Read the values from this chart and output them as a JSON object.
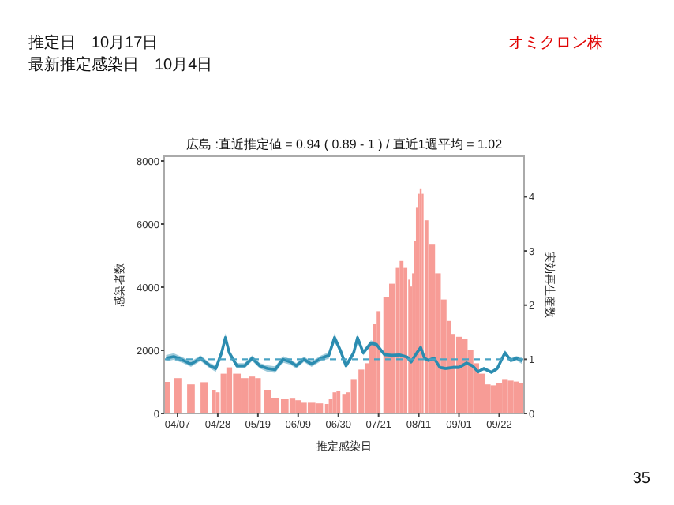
{
  "chart_data": {
    "type": "bar",
    "title": "広島 :直近推定値 = 0.94 ( 0.89 - 1 ) / 直近1週平均 = 1.02",
    "xlabel": "推定感染日",
    "ylabel": "感染者数",
    "y2label": "実効再生産数",
    "annotations": [
      "推定日　10月17日",
      "最新推定感染日　10月4日",
      "オミクロン株",
      "35"
    ],
    "xlim": [
      "--03-31",
      "--10-05"
    ],
    "xticks": [
      {
        "value": "--04-07",
        "label": "04/07"
      },
      {
        "value": "--04-28",
        "label": "04/28"
      },
      {
        "value": "--05-19",
        "label": "05/19"
      },
      {
        "value": "--06-09",
        "label": "06/09"
      },
      {
        "value": "--06-30",
        "label": "06/30"
      },
      {
        "value": "--07-21",
        "label": "07/21"
      },
      {
        "value": "--08-11",
        "label": "08/11"
      },
      {
        "value": "--09-01",
        "label": "09/01"
      },
      {
        "value": "--09-22",
        "label": "09/22"
      }
    ],
    "ylim": [
      0,
      8150
    ],
    "yticks": [
      0,
      2000,
      4000,
      6000,
      8000
    ],
    "y2lim": [
      0,
      4.75
    ],
    "y2ticks": [
      0,
      1,
      2,
      3,
      4
    ],
    "grid": false,
    "ref_lines": [
      {
        "axis": "y2",
        "value": 1,
        "color": "#4aa3c3",
        "line_style": "dashed"
      }
    ],
    "series": [
      {
        "color": "#f79c96",
        "x": [
          "--04-01",
          "--04-07",
          "--04-14",
          "--04-21",
          "--04-26",
          "--04-28",
          "--05-01",
          "--05-04",
          "--05-08",
          "--05-12",
          "--05-16",
          "--05-19",
          "--05-24",
          "--05-28",
          "--06-02",
          "--06-06",
          "--06-09",
          "--06-12",
          "--06-16",
          "--06-20",
          "--06-24",
          "--06-26",
          "--06-28",
          "--06-30",
          "--07-03",
          "--07-05",
          "--07-08",
          "--07-12",
          "--07-15",
          "--07-17",
          "--07-19",
          "--07-21",
          "--07-25",
          "--07-28",
          "--07-31",
          "--08-02",
          "--08-04",
          "--08-06",
          "--08-07",
          "--08-08",
          "--08-09",
          "--08-10",
          "--08-11",
          "--08-12",
          "--08-13",
          "--08-15",
          "--08-18",
          "--08-21",
          "--08-24",
          "--08-27",
          "--08-29",
          "--09-01",
          "--09-04",
          "--09-07",
          "--09-10",
          "--09-13",
          "--09-16",
          "--09-19",
          "--09-22",
          "--09-25",
          "--09-28",
          "--10-01",
          "--10-04"
        ],
        "values": [
          1000,
          1120,
          920,
          990,
          750,
          670,
          1260,
          1460,
          1260,
          1120,
          1170,
          1120,
          750,
          500,
          450,
          470,
          420,
          340,
          340,
          320,
          300,
          450,
          670,
          720,
          620,
          670,
          1090,
          1390,
          1590,
          2260,
          2850,
          3240,
          3690,
          4110,
          4610,
          4830,
          4610,
          4240,
          4020,
          4440,
          5450,
          6540,
          6960,
          7130,
          6960,
          6120,
          5370,
          4440,
          3610,
          2930,
          2520,
          2430,
          2350,
          2010,
          1590,
          1260,
          920,
          890,
          960,
          1090,
          1040,
          1010,
          960
        ]
      },
      {
        "type": "line",
        "axis": "y2",
        "color": "#2b8cb0",
        "x": [
          "--04-01",
          "--04-05",
          "--04-10",
          "--04-14",
          "--04-19",
          "--04-24",
          "--04-27",
          "--04-30",
          "--05-02",
          "--05-04",
          "--05-08",
          "--05-12",
          "--05-16",
          "--05-20",
          "--05-24",
          "--05-28",
          "--06-01",
          "--06-05",
          "--06-08",
          "--06-12",
          "--06-16",
          "--06-21",
          "--06-25",
          "--06-28",
          "--07-01",
          "--07-04",
          "--07-08",
          "--07-10",
          "--07-13",
          "--07-17",
          "--07-20",
          "--07-24",
          "--07-28",
          "--08-01",
          "--08-05",
          "--08-07",
          "--08-10",
          "--08-12",
          "--08-14",
          "--08-16",
          "--08-19",
          "--08-22",
          "--08-25",
          "--08-29",
          "--09-01",
          "--09-05",
          "--09-08",
          "--09-11",
          "--09-14",
          "--09-18",
          "--09-21",
          "--09-25",
          "--09-28",
          "--10-01",
          "--10-04"
        ],
        "values": [
          1.02,
          1.05,
          0.98,
          0.91,
          1.02,
          0.88,
          0.83,
          1.12,
          1.4,
          1.12,
          0.88,
          0.88,
          1.02,
          0.88,
          0.83,
          0.81,
          1.0,
          0.95,
          0.88,
          1.0,
          0.91,
          1.02,
          1.07,
          1.4,
          1.17,
          0.88,
          1.12,
          1.4,
          1.12,
          1.3,
          1.27,
          1.09,
          1.07,
          1.08,
          1.04,
          0.95,
          1.12,
          1.22,
          1.02,
          0.98,
          1.02,
          0.85,
          0.83,
          0.85,
          0.85,
          0.93,
          0.88,
          0.77,
          0.83,
          0.76,
          0.83,
          1.12,
          0.98,
          1.02,
          0.97
        ],
        "lower": [
          0.96,
          0.99,
          0.93,
          0.86,
          0.97,
          0.83,
          0.77,
          1.05,
          1.32,
          1.06,
          0.83,
          0.83,
          0.97,
          0.83,
          0.77,
          0.75,
          0.94,
          0.9,
          0.83,
          0.95,
          0.86,
          0.97,
          1.01,
          1.32,
          1.11,
          0.83,
          1.06,
          1.33,
          1.07,
          1.25,
          1.23,
          1.05,
          1.03,
          1.05,
          1.01,
          0.92,
          1.09,
          1.18,
          0.99,
          0.95,
          0.99,
          0.82,
          0.8,
          0.82,
          0.82,
          0.9,
          0.85,
          0.74,
          0.8,
          0.73,
          0.79,
          1.07,
          0.94,
          0.98,
          0.91
        ],
        "upper": [
          1.08,
          1.11,
          1.03,
          0.96,
          1.07,
          0.93,
          0.89,
          1.19,
          1.48,
          1.18,
          0.93,
          0.93,
          1.07,
          0.93,
          0.89,
          0.87,
          1.06,
          1.0,
          0.93,
          1.05,
          0.96,
          1.07,
          1.13,
          1.48,
          1.23,
          0.93,
          1.18,
          1.47,
          1.17,
          1.35,
          1.31,
          1.13,
          1.11,
          1.11,
          1.07,
          0.98,
          1.15,
          1.26,
          1.05,
          1.01,
          1.05,
          0.88,
          0.86,
          0.88,
          0.88,
          0.96,
          0.91,
          0.8,
          0.86,
          0.79,
          0.87,
          1.17,
          1.02,
          1.06,
          1.03
        ]
      }
    ]
  }
}
